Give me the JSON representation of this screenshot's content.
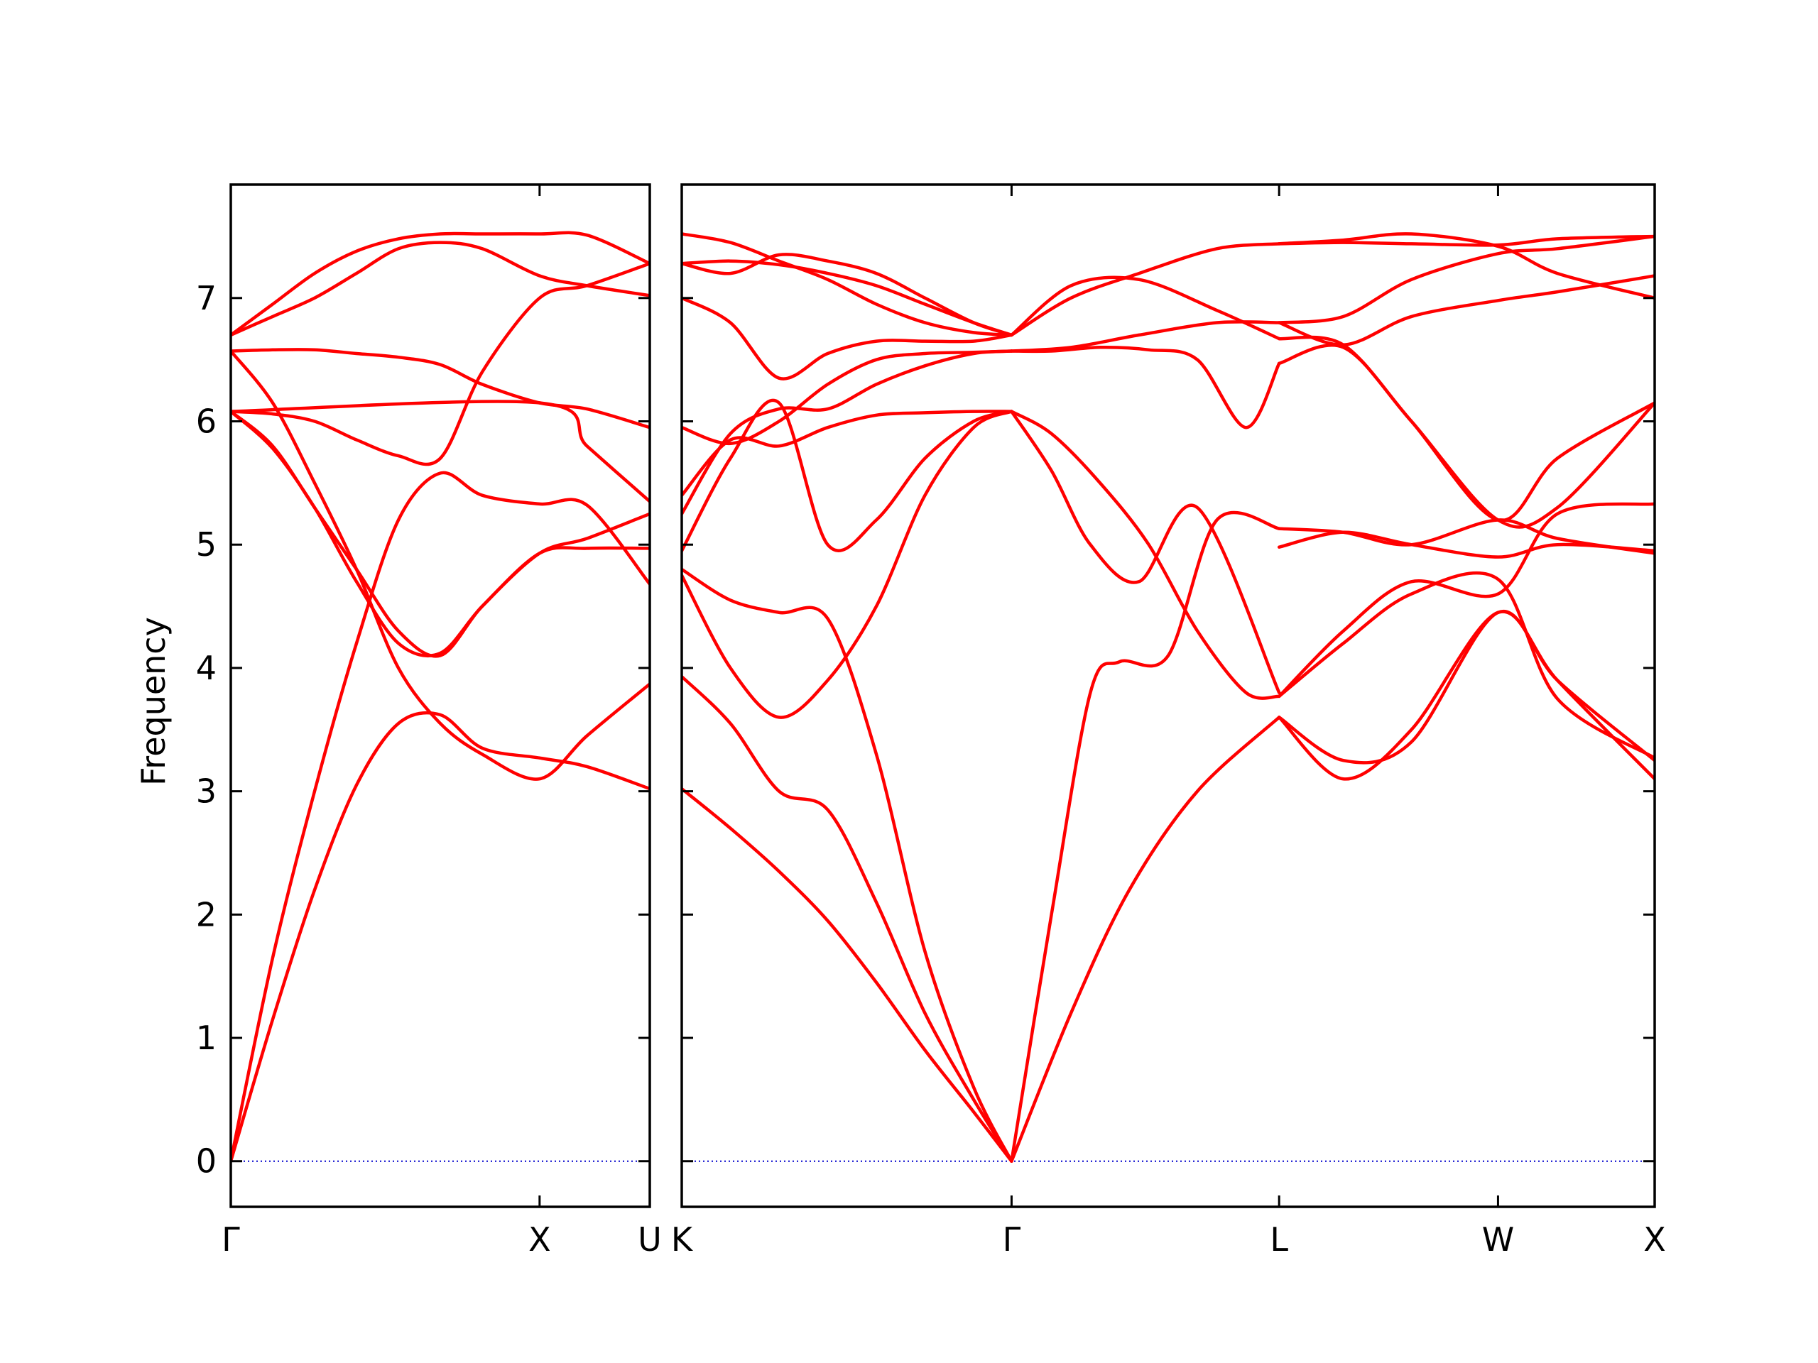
{
  "chart_data": {
    "type": "line",
    "title": "",
    "ylabel": "Frequency",
    "xlabel": "",
    "ylim": [
      -0.37,
      7.92
    ],
    "yticks": [
      "0",
      "1",
      "2",
      "3",
      "4",
      "5",
      "6",
      "7"
    ],
    "grid": false,
    "legend": "none",
    "colors": {
      "band": "#ff0000",
      "zero_line": "#0000cc",
      "axes": "#000000"
    },
    "panels": [
      {
        "id": "gamma-x-u",
        "xlim": [
          0,
          1.0
        ],
        "xticks": [
          {
            "x": 0.0,
            "label": "Γ"
          },
          {
            "x": 0.737,
            "label": "X"
          },
          {
            "x": 1.0,
            "label": "U"
          }
        ],
        "series": [
          {
            "x": [
              0,
              0.1,
              0.2,
              0.3,
              0.4,
              0.5,
              0.6,
              0.737,
              0.85,
              1.0
            ],
            "values": [
              0.0,
              1.15,
              2.2,
              3.05,
              3.55,
              3.62,
              3.35,
              3.27,
              3.2,
              3.02
            ]
          },
          {
            "x": [
              0,
              0.1,
              0.2,
              0.3,
              0.4,
              0.5,
              0.6,
              0.737,
              0.85,
              1.0
            ],
            "values": [
              0.0,
              1.65,
              3.0,
              4.2,
              5.2,
              5.58,
              5.4,
              5.33,
              5.32,
              4.68
            ]
          },
          {
            "x": [
              0,
              0.1,
              0.2,
              0.3,
              0.4,
              0.5,
              0.6,
              0.737,
              0.85,
              1.0
            ],
            "values": [
              6.08,
              5.78,
              5.3,
              4.7,
              4.2,
              4.12,
              4.5,
              4.93,
              4.97,
              4.97
            ]
          },
          {
            "x": [
              0,
              0.1,
              0.2,
              0.3,
              0.4,
              0.5,
              0.6,
              0.737,
              0.85,
              1.0
            ],
            "values": [
              6.57,
              6.15,
              5.5,
              4.8,
              4.0,
              3.55,
              3.3,
              3.1,
              3.45,
              3.87
            ]
          },
          {
            "x": [
              0,
              0.1,
              0.2,
              0.3,
              0.4,
              0.5,
              0.6,
              0.737,
              0.85,
              1.0
            ],
            "values": [
              6.08,
              6.06,
              6.0,
              5.85,
              5.72,
              5.7,
              6.4,
              7.0,
              7.1,
              7.28
            ]
          },
          {
            "x": [
              0,
              0.1,
              0.2,
              0.3,
              0.4,
              0.5,
              0.6,
              0.737,
              0.85,
              1.0
            ],
            "values": [
              6.57,
              6.58,
              6.58,
              6.55,
              6.52,
              6.46,
              6.3,
              6.15,
              6.1,
              5.95
            ]
          },
          {
            "x": [
              0,
              0.1,
              0.2,
              0.3,
              0.4,
              0.5,
              0.6,
              0.737,
              0.85,
              1.0
            ],
            "values": [
              6.7,
              6.85,
              7.0,
              7.2,
              7.4,
              7.45,
              7.4,
              7.18,
              7.1,
              7.02
            ]
          },
          {
            "x": [
              0,
              0.1,
              0.2,
              0.3,
              0.4,
              0.5,
              0.6,
              0.737,
              0.85,
              1.0
            ],
            "values": [
              6.7,
              6.95,
              7.2,
              7.38,
              7.48,
              7.52,
              7.52,
              7.52,
              7.51,
              7.28
            ]
          },
          {
            "x": [
              0,
              0.1,
              0.2,
              0.3,
              0.4,
              0.5,
              0.6,
              0.737,
              0.85,
              1.0
            ],
            "values": [
              6.08,
              5.8,
              5.3,
              4.8,
              4.3,
              4.1,
              4.5,
              4.93,
              5.05,
              5.25
            ]
          },
          {
            "x": [
              0,
              0.737,
              0.85,
              1.0
            ],
            "values": [
              6.08,
              6.15,
              5.8,
              5.35
            ]
          }
        ]
      },
      {
        "id": "k-gamma-l-w-x",
        "xlim": [
          0,
          1.0
        ],
        "xticks": [
          {
            "x": 0.0,
            "label": "K"
          },
          {
            "x": 0.339,
            "label": "Γ"
          },
          {
            "x": 0.614,
            "label": "L"
          },
          {
            "x": 0.839,
            "label": "W"
          },
          {
            "x": 1.0,
            "label": "X"
          }
        ],
        "series": [
          {
            "x": [
              0,
              0.05,
              0.1,
              0.15,
              0.2,
              0.25,
              0.3,
              0.339
            ],
            "values": [
              3.02,
              2.7,
              2.35,
              1.95,
              1.45,
              0.9,
              0.4,
              0.0
            ]
          },
          {
            "x": [
              0,
              0.05,
              0.1,
              0.15,
              0.2,
              0.25,
              0.3,
              0.339
            ],
            "values": [
              3.93,
              3.55,
              3.0,
              2.85,
              2.1,
              1.2,
              0.5,
              0.0
            ]
          },
          {
            "x": [
              0,
              0.05,
              0.1,
              0.15,
              0.2,
              0.25,
              0.3,
              0.339
            ],
            "values": [
              4.8,
              4.55,
              4.45,
              4.4,
              3.3,
              1.7,
              0.6,
              0.0
            ]
          },
          {
            "x": [
              0,
              0.05,
              0.1,
              0.15,
              0.2,
              0.25,
              0.3,
              0.339
            ],
            "values": [
              4.75,
              4.0,
              3.6,
              3.9,
              4.5,
              5.4,
              5.95,
              6.08
            ]
          },
          {
            "x": [
              0,
              0.05,
              0.1,
              0.15,
              0.2,
              0.25,
              0.3,
              0.339
            ],
            "values": [
              4.95,
              5.7,
              6.15,
              5.0,
              5.2,
              5.7,
              6.0,
              6.08
            ]
          },
          {
            "x": [
              0,
              0.05,
              0.1,
              0.15,
              0.2,
              0.25,
              0.3,
              0.339
            ],
            "values": [
              5.25,
              5.9,
              6.1,
              6.1,
              6.3,
              6.45,
              6.55,
              6.57
            ]
          },
          {
            "x": [
              0,
              0.05,
              0.1,
              0.15,
              0.2,
              0.25,
              0.3,
              0.339
            ],
            "values": [
              5.4,
              5.85,
              5.8,
              5.95,
              6.05,
              6.07,
              6.08,
              6.08
            ]
          },
          {
            "x": [
              0,
              0.05,
              0.1,
              0.15,
              0.2,
              0.25,
              0.3,
              0.339
            ],
            "values": [
              5.95,
              5.82,
              6.0,
              6.3,
              6.5,
              6.55,
              6.56,
              6.57
            ]
          },
          {
            "x": [
              0,
              0.05,
              0.1,
              0.15,
              0.2,
              0.25,
              0.3,
              0.339
            ],
            "values": [
              7.0,
              6.8,
              6.35,
              6.55,
              6.65,
              6.65,
              6.65,
              6.7
            ]
          },
          {
            "x": [
              0,
              0.05,
              0.1,
              0.15,
              0.2,
              0.25,
              0.3,
              0.339
            ],
            "values": [
              7.28,
              7.3,
              7.27,
              7.2,
              7.1,
              6.95,
              6.8,
              6.7
            ]
          },
          {
            "x": [
              0,
              0.05,
              0.1,
              0.15,
              0.2,
              0.25,
              0.3,
              0.339
            ],
            "values": [
              7.28,
              7.2,
              7.35,
              7.3,
              7.2,
              7.0,
              6.8,
              6.7
            ]
          },
          {
            "x": [
              0,
              0.05,
              0.1,
              0.15,
              0.2,
              0.25,
              0.3,
              0.339
            ],
            "values": [
              7.52,
              7.45,
              7.3,
              7.15,
              6.95,
              6.8,
              6.72,
              6.7
            ]
          },
          {
            "x": [
              0.339,
              0.4,
              0.46,
              0.53,
              0.614
            ],
            "values": [
              0.0,
              1.2,
              2.2,
              3.0,
              3.6
            ]
          },
          {
            "x": [
              0.339,
              0.38,
              0.42,
              0.45,
              0.5,
              0.55,
              0.614
            ],
            "values": [
              0.0,
              2.0,
              3.8,
              4.05,
              4.1,
              5.2,
              5.13
            ]
          },
          {
            "x": [
              0.339,
              0.38,
              0.42,
              0.47,
              0.53,
              0.614
            ],
            "values": [
              6.08,
              5.6,
              5.0,
              4.7,
              5.3,
              3.8
            ]
          },
          {
            "x": [
              0.339,
              0.38,
              0.43,
              0.48,
              0.53,
              0.58,
              0.614
            ],
            "values": [
              6.08,
              5.9,
              5.5,
              5.0,
              4.3,
              3.8,
              3.77
            ]
          },
          {
            "x": [
              0.339,
              0.38,
              0.43,
              0.48,
              0.53,
              0.58,
              0.614
            ],
            "values": [
              6.57,
              6.57,
              6.6,
              6.58,
              6.5,
              5.95,
              6.47
            ]
          },
          {
            "x": [
              0.339,
              0.4,
              0.47,
              0.55,
              0.614
            ],
            "values": [
              6.57,
              6.6,
              6.7,
              6.8,
              6.8
            ]
          },
          {
            "x": [
              0.339,
              0.4,
              0.47,
              0.55,
              0.614
            ],
            "values": [
              6.7,
              7.0,
              7.2,
              7.4,
              7.44
            ]
          },
          {
            "x": [
              0.339,
              0.4,
              0.47,
              0.55,
              0.614
            ],
            "values": [
              6.7,
              7.1,
              7.15,
              6.9,
              6.67
            ]
          },
          {
            "x": [
              0.614,
              0.68,
              0.75,
              0.839,
              0.9,
              1.0
            ],
            "values": [
              3.6,
              3.25,
              3.4,
              4.45,
              3.9,
              3.25
            ]
          },
          {
            "x": [
              0.614,
              0.68,
              0.75,
              0.839,
              0.9,
              1.0
            ],
            "values": [
              3.6,
              3.1,
              3.5,
              4.45,
              3.9,
              3.1
            ]
          },
          {
            "x": [
              0.614,
              0.68,
              0.75,
              0.839,
              0.9,
              1.0
            ],
            "values": [
              3.77,
              4.2,
              4.6,
              4.72,
              3.75,
              3.27
            ]
          },
          {
            "x": [
              0.614,
              0.68,
              0.75,
              0.839,
              0.9,
              1.0
            ],
            "values": [
              3.77,
              4.3,
              4.7,
              4.6,
              5.25,
              5.33
            ]
          },
          {
            "x": [
              0.614,
              0.68,
              0.75,
              0.839,
              0.9,
              1.0
            ],
            "values": [
              4.98,
              5.1,
              5.0,
              4.9,
              5.0,
              4.95
            ]
          },
          {
            "x": [
              0.614,
              0.68,
              0.75,
              0.839,
              0.9,
              1.0
            ],
            "values": [
              5.13,
              5.1,
              5.0,
              5.2,
              5.05,
              4.93
            ]
          },
          {
            "x": [
              0.614,
              0.68,
              0.75,
              0.839,
              0.9,
              1.0
            ],
            "values": [
              6.47,
              6.6,
              6.0,
              5.2,
              5.3,
              6.15
            ]
          },
          {
            "x": [
              0.614,
              0.68,
              0.75,
              0.839,
              0.9,
              1.0
            ],
            "values": [
              6.67,
              6.62,
              6.0,
              5.2,
              5.7,
              6.15
            ]
          },
          {
            "x": [
              0.614,
              0.68,
              0.75,
              0.839,
              0.9,
              1.0
            ],
            "values": [
              6.8,
              6.62,
              6.85,
              6.98,
              7.05,
              7.18
            ]
          },
          {
            "x": [
              0.614,
              0.68,
              0.75,
              0.839,
              0.9,
              1.0
            ],
            "values": [
              6.8,
              6.85,
              7.15,
              7.36,
              7.4,
              7.5
            ]
          },
          {
            "x": [
              0.614,
              0.68,
              0.75,
              0.839,
              0.9,
              1.0
            ],
            "values": [
              7.44,
              7.47,
              7.52,
              7.42,
              7.2,
              7.0
            ]
          },
          {
            "x": [
              0.614,
              0.68,
              0.75,
              0.839,
              0.9,
              1.0
            ],
            "values": [
              7.44,
              7.45,
              7.44,
              7.43,
              7.48,
              7.5
            ]
          }
        ]
      }
    ]
  }
}
